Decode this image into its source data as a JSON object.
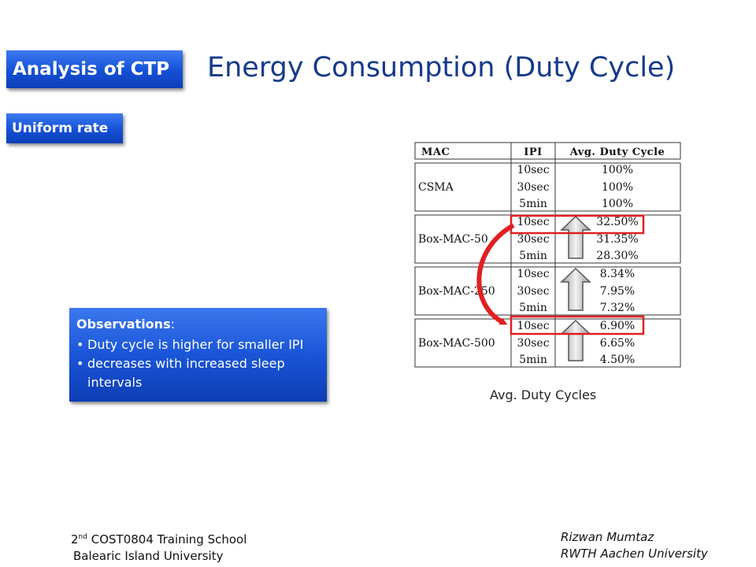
{
  "slide": {
    "section_tag": "Analysis of CTP",
    "title": "Energy Consumption (Duty Cycle)",
    "subsection_tag": "Uniform rate"
  },
  "observations": {
    "heading": "Observations",
    "heading_suffix": ":",
    "items": [
      "Duty cycle is higher for smaller IPI",
      "decreases with increased sleep intervals"
    ]
  },
  "table": {
    "headers": [
      "MAC",
      "IPI",
      "Avg. Duty Cycle"
    ],
    "groups": [
      {
        "mac": "CSMA",
        "rows": [
          [
            "10sec",
            "100%"
          ],
          [
            "30sec",
            "100%"
          ],
          [
            "5min",
            "100%"
          ]
        ]
      },
      {
        "mac": "Box-MAC-50",
        "rows": [
          [
            "10sec",
            "32.50%"
          ],
          [
            "30sec",
            "31.35%"
          ],
          [
            "5min",
            "28.30%"
          ]
        ]
      },
      {
        "mac": "Box-MAC-250",
        "rows": [
          [
            "10sec",
            "8.34%"
          ],
          [
            "30sec",
            "7.95%"
          ],
          [
            "5min",
            "7.32%"
          ]
        ]
      },
      {
        "mac": "Box-MAC-500",
        "rows": [
          [
            "10sec",
            "6.90%"
          ],
          [
            "30sec",
            "6.65%"
          ],
          [
            "5min",
            "4.50%"
          ]
        ]
      }
    ],
    "caption": "Avg. Duty Cycles",
    "highlight_color": "#e02020"
  },
  "footer": {
    "left_line1_num": "2",
    "left_line1_sup": "nd",
    "left_line1_rest": " COST0804 Training School",
    "left_line2": "Balearic Island University",
    "right_line1": "Rizwan Mumtaz",
    "right_line2": "RWTH Aachen University"
  },
  "colors": {
    "accent": "#1a55d8",
    "title": "#163a8c"
  }
}
